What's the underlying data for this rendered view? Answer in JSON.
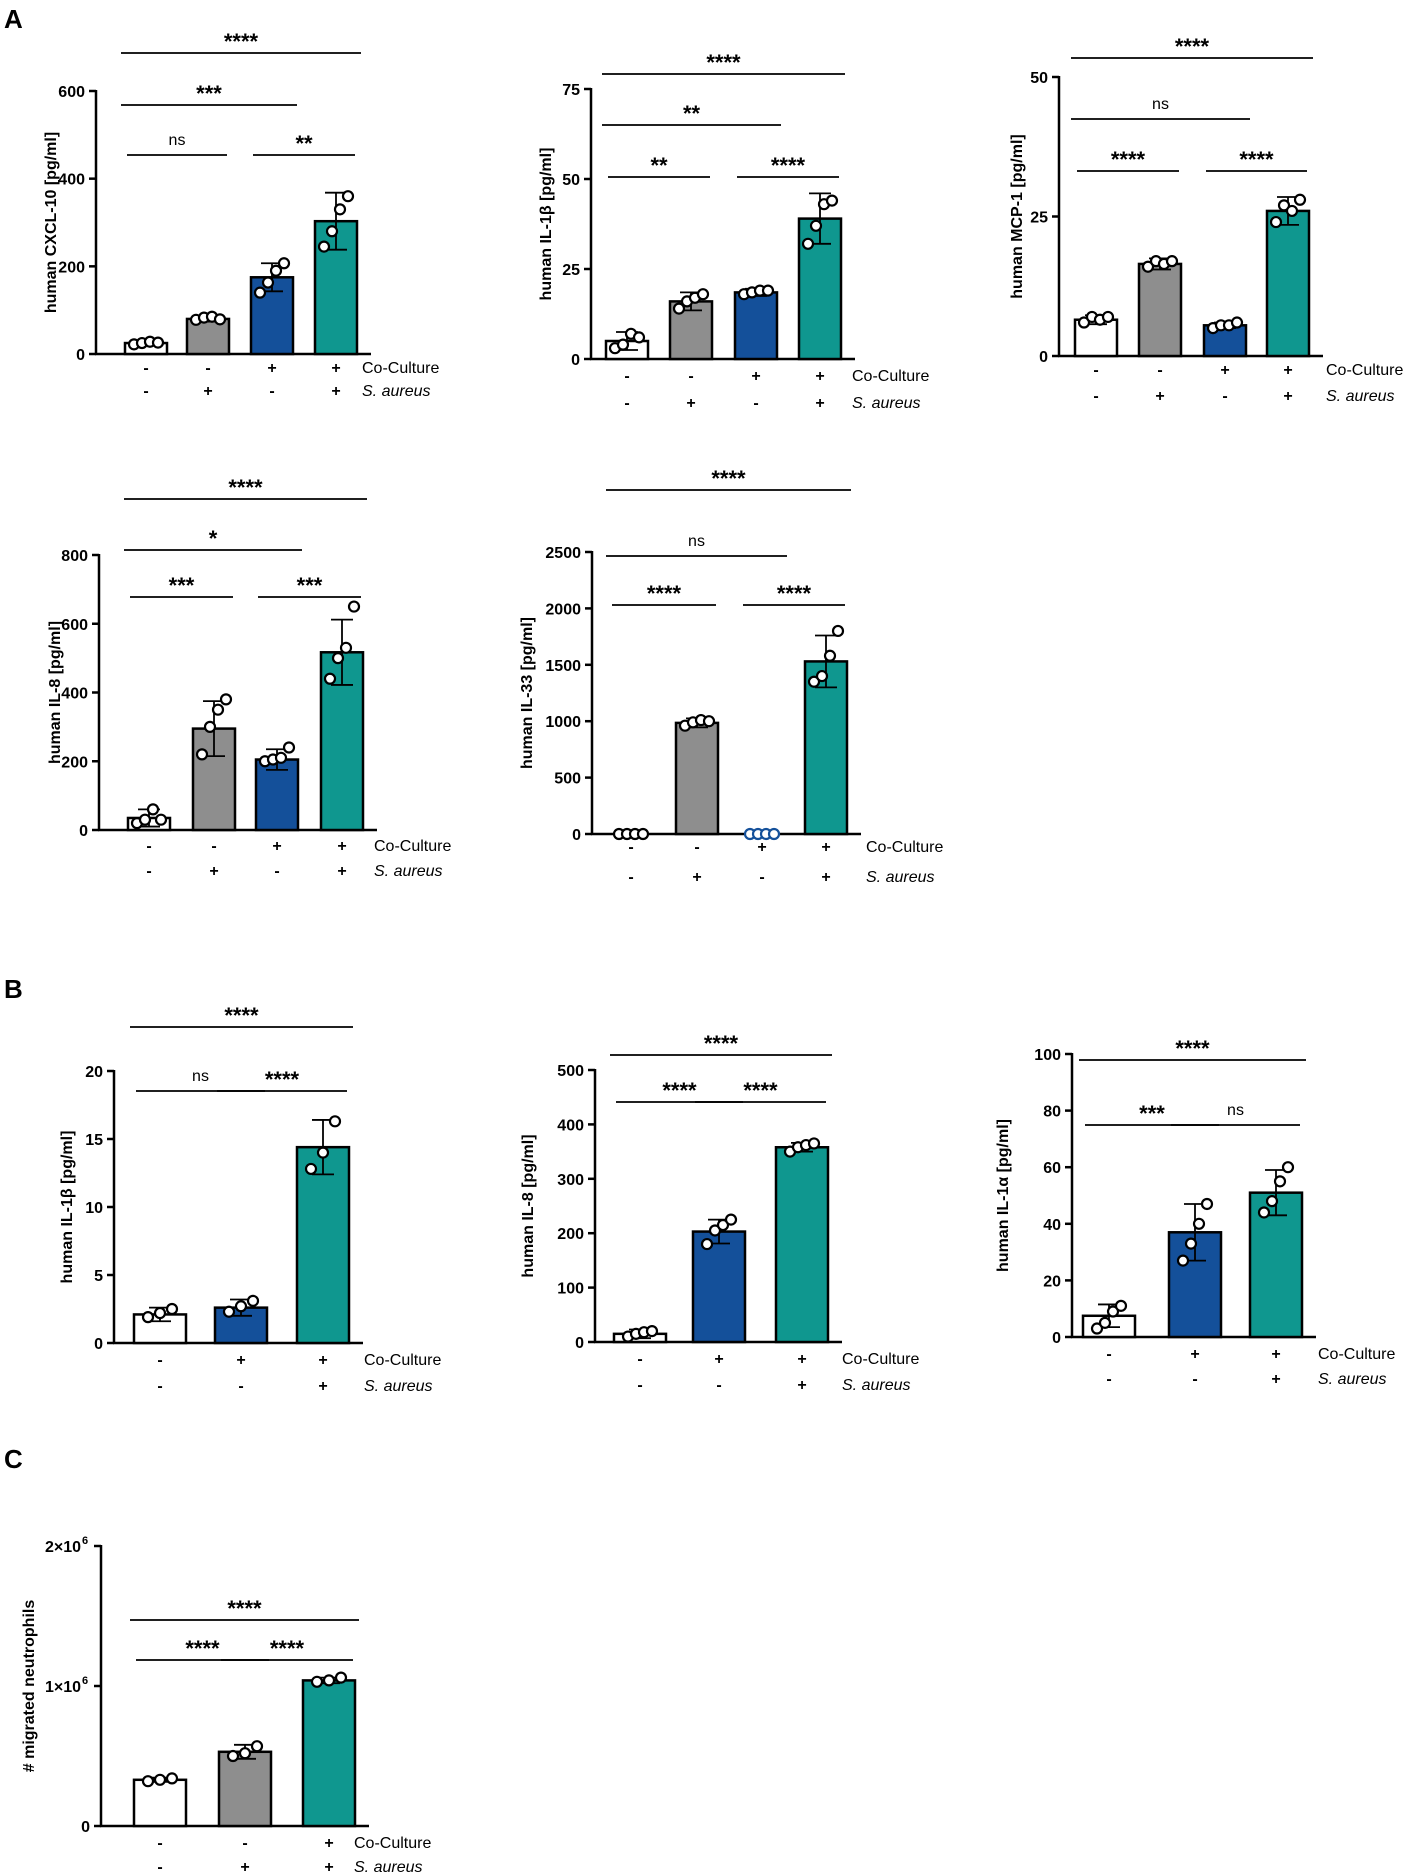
{
  "panels": [
    {
      "label": "A",
      "data_name": "panel-label-a"
    },
    {
      "label": "B",
      "data_name": "panel-label-b"
    },
    {
      "label": "C",
      "data_name": "panel-label-c"
    }
  ],
  "colors": {
    "no_coculture_no_aureus": "#ffffff",
    "no_coculture_aureus": "#8e8e8e",
    "coculture_no_aureus": "#14509a",
    "coculture_aureus": "#0f978f",
    "outline": "#000000"
  },
  "row_labels": {
    "coculture": "Co-Culture",
    "aureus": "S. aureus"
  },
  "chart_data": [
    {
      "id": "a1",
      "panel": "A",
      "type": "bar",
      "ylabel": "human CXCL-10 [pg/ml]",
      "ylim": [
        0,
        600
      ],
      "yticks": [
        0,
        200,
        400,
        600
      ],
      "yticklabels": [
        "0",
        "200",
        "400",
        "600"
      ],
      "categories": [
        "-/-",
        "-/+",
        "+/-",
        "+/+"
      ],
      "coculture": [
        "-",
        "-",
        "+",
        "+"
      ],
      "aureus": [
        "-",
        "+",
        "-",
        "+"
      ],
      "values": [
        25,
        80,
        175,
        303
      ],
      "errors": [
        5,
        6,
        32,
        65
      ],
      "points": [
        [
          22,
          25,
          28,
          26
        ],
        [
          78,
          83,
          85,
          79
        ],
        [
          140,
          163,
          190,
          207
        ],
        [
          245,
          280,
          330,
          360
        ]
      ],
      "colors": [
        "#ffffff",
        "#8e8e8e",
        "#14509a",
        "#0f978f"
      ],
      "comparisons": [
        {
          "from": 0,
          "to": 1,
          "label": "ns"
        },
        {
          "from": 2,
          "to": 3,
          "label": "**"
        },
        {
          "from": 0,
          "to": 2,
          "label": "***"
        },
        {
          "from": 0,
          "to": 3,
          "label": "****"
        }
      ]
    },
    {
      "id": "a2",
      "panel": "A",
      "type": "bar",
      "ylabel": "human IL-1β [pg/ml]",
      "ylim": [
        0,
        75
      ],
      "yticks": [
        0,
        25,
        50,
        75
      ],
      "yticklabels": [
        "0",
        "25",
        "50",
        "75"
      ],
      "categories": [
        "-/-",
        "-/+",
        "+/-",
        "+/+"
      ],
      "coculture": [
        "-",
        "-",
        "+",
        "+"
      ],
      "aureus": [
        "-",
        "+",
        "-",
        "+"
      ],
      "values": [
        5,
        16,
        18.5,
        39
      ],
      "errors": [
        2.5,
        2.5,
        1,
        7
      ],
      "points": [
        [
          3,
          4,
          7,
          6
        ],
        [
          14,
          16,
          17,
          18
        ],
        [
          18,
          18.5,
          19,
          19
        ],
        [
          32,
          37,
          43,
          44
        ]
      ],
      "colors": [
        "#ffffff",
        "#8e8e8e",
        "#14509a",
        "#0f978f"
      ],
      "comparisons": [
        {
          "from": 0,
          "to": 1,
          "label": "**"
        },
        {
          "from": 2,
          "to": 3,
          "label": "****"
        },
        {
          "from": 0,
          "to": 2,
          "label": "**"
        },
        {
          "from": 0,
          "to": 3,
          "label": "****"
        }
      ]
    },
    {
      "id": "a3",
      "panel": "A",
      "type": "bar",
      "ylabel": "human MCP-1 [pg/ml]",
      "ylim": [
        0,
        50
      ],
      "yticks": [
        0,
        25,
        50
      ],
      "yticklabels": [
        "0",
        "25",
        "50"
      ],
      "categories": [
        "-/-",
        "-/+",
        "+/-",
        "+/+"
      ],
      "coculture": [
        "-",
        "-",
        "+",
        "+"
      ],
      "aureus": [
        "-",
        "+",
        "-",
        "+"
      ],
      "values": [
        6.5,
        16.5,
        5.5,
        26
      ],
      "errors": [
        0.8,
        1,
        0.5,
        2.5
      ],
      "points": [
        [
          6,
          7,
          6.5,
          7
        ],
        [
          16,
          17,
          16.5,
          17
        ],
        [
          5,
          5.5,
          5.5,
          6
        ],
        [
          24,
          27,
          26,
          28
        ]
      ],
      "colors": [
        "#ffffff",
        "#8e8e8e",
        "#14509a",
        "#0f978f"
      ],
      "comparisons": [
        {
          "from": 0,
          "to": 1,
          "label": "****"
        },
        {
          "from": 2,
          "to": 3,
          "label": "****"
        },
        {
          "from": 0,
          "to": 2,
          "label": "ns"
        },
        {
          "from": 0,
          "to": 3,
          "label": "****"
        }
      ]
    },
    {
      "id": "a4",
      "panel": "A",
      "type": "bar",
      "ylabel": "human IL-8 [pg/ml]",
      "ylim": [
        0,
        800
      ],
      "yticks": [
        0,
        200,
        400,
        600,
        800
      ],
      "yticklabels": [
        "0",
        "200",
        "400",
        "600",
        "800"
      ],
      "categories": [
        "-/-",
        "-/+",
        "+/-",
        "+/+"
      ],
      "coculture": [
        "-",
        "-",
        "+",
        "+"
      ],
      "aureus": [
        "-",
        "+",
        "-",
        "+"
      ],
      "values": [
        35,
        295,
        205,
        517
      ],
      "errors": [
        25,
        80,
        30,
        95
      ],
      "points": [
        [
          20,
          30,
          60,
          30
        ],
        [
          220,
          300,
          350,
          380
        ],
        [
          200,
          205,
          210,
          240
        ],
        [
          440,
          500,
          530,
          650
        ]
      ],
      "colors": [
        "#ffffff",
        "#8e8e8e",
        "#14509a",
        "#0f978f"
      ],
      "comparisons": [
        {
          "from": 0,
          "to": 1,
          "label": "***"
        },
        {
          "from": 2,
          "to": 3,
          "label": "***"
        },
        {
          "from": 0,
          "to": 2,
          "label": "*"
        },
        {
          "from": 0,
          "to": 3,
          "label": "****"
        }
      ]
    },
    {
      "id": "a5",
      "panel": "A",
      "type": "bar",
      "ylabel": "human IL-33 [pg/ml]",
      "ylim": [
        0,
        2500
      ],
      "yticks": [
        0,
        500,
        1000,
        1500,
        2000,
        2500
      ],
      "yticklabels": [
        "0",
        "500",
        "1000",
        "1500",
        "2000",
        "2500"
      ],
      "categories": [
        "-/-",
        "-/+",
        "+/-",
        "+/+"
      ],
      "coculture": [
        "-",
        "-",
        "+",
        "+"
      ],
      "aureus": [
        "-",
        "+",
        "-",
        "+"
      ],
      "values": [
        0,
        985,
        0,
        1530
      ],
      "errors": [
        0,
        40,
        0,
        230
      ],
      "points": [
        [
          0,
          0,
          0,
          0
        ],
        [
          960,
          990,
          1010,
          1000
        ],
        [
          0,
          0,
          0,
          0
        ],
        [
          1350,
          1400,
          1580,
          1800
        ]
      ],
      "point_stroke": [
        "#000000",
        "#000000",
        "#14509a",
        "#000000"
      ],
      "colors": [
        "#ffffff",
        "#8e8e8e",
        "#14509a",
        "#0f978f"
      ],
      "comparisons": [
        {
          "from": 0,
          "to": 1,
          "label": "****"
        },
        {
          "from": 2,
          "to": 3,
          "label": "****"
        },
        {
          "from": 0,
          "to": 2,
          "label": "ns"
        },
        {
          "from": 0,
          "to": 3,
          "label": "****"
        }
      ]
    },
    {
      "id": "b1",
      "panel": "B",
      "type": "bar",
      "ylabel": "human IL-1β [pg/ml]",
      "ylim": [
        0,
        20
      ],
      "yticks": [
        0,
        5,
        10,
        15,
        20
      ],
      "yticklabels": [
        "0",
        "5",
        "10",
        "15",
        "20"
      ],
      "categories": [
        "-/-",
        "+/-",
        "+/+"
      ],
      "coculture": [
        "-",
        "+",
        "+"
      ],
      "aureus": [
        "-",
        "-",
        "+"
      ],
      "values": [
        2.1,
        2.6,
        14.4
      ],
      "errors": [
        0.5,
        0.6,
        2
      ],
      "points": [
        [
          1.9,
          2.2,
          2.5
        ],
        [
          2.3,
          2.7,
          3.1
        ],
        [
          12.8,
          14,
          16.3
        ]
      ],
      "colors": [
        "#ffffff",
        "#14509a",
        "#0f978f"
      ],
      "comparisons": [
        {
          "from": 0,
          "to": 1,
          "label": "ns"
        },
        {
          "from": 1,
          "to": 2,
          "label": "****"
        },
        {
          "from": 0,
          "to": 2,
          "label": "****"
        }
      ]
    },
    {
      "id": "b2",
      "panel": "B",
      "type": "bar",
      "ylabel": "human IL-8 [pg/ml]",
      "ylim": [
        0,
        500
      ],
      "yticks": [
        0,
        100,
        200,
        300,
        400,
        500
      ],
      "yticklabels": [
        "0",
        "100",
        "200",
        "300",
        "400",
        "500"
      ],
      "categories": [
        "-/-",
        "+/-",
        "+/+"
      ],
      "coculture": [
        "-",
        "+",
        "+"
      ],
      "aureus": [
        "-",
        "-",
        "+"
      ],
      "values": [
        15,
        203,
        358
      ],
      "errors": [
        8,
        22,
        8
      ],
      "points": [
        [
          10,
          15,
          18,
          20
        ],
        [
          180,
          205,
          215,
          225
        ],
        [
          350,
          358,
          362,
          365
        ]
      ],
      "colors": [
        "#ffffff",
        "#14509a",
        "#0f978f"
      ],
      "comparisons": [
        {
          "from": 0,
          "to": 1,
          "label": "****"
        },
        {
          "from": 1,
          "to": 2,
          "label": "****"
        },
        {
          "from": 0,
          "to": 2,
          "label": "****"
        }
      ]
    },
    {
      "id": "b3",
      "panel": "B",
      "type": "bar",
      "ylabel": "human IL-1α [pg/ml]",
      "ylim": [
        0,
        100
      ],
      "yticks": [
        0,
        20,
        40,
        60,
        80,
        100
      ],
      "yticklabels": [
        "0",
        "20",
        "40",
        "60",
        "80",
        "100"
      ],
      "categories": [
        "-/-",
        "+/-",
        "+/+"
      ],
      "coculture": [
        "-",
        "+",
        "+"
      ],
      "aureus": [
        "-",
        "-",
        "+"
      ],
      "values": [
        7.5,
        37,
        51
      ],
      "errors": [
        4,
        10,
        8
      ],
      "points": [
        [
          3,
          5,
          9,
          11
        ],
        [
          27,
          33,
          40,
          47
        ],
        [
          44,
          48,
          55,
          60
        ]
      ],
      "colors": [
        "#ffffff",
        "#14509a",
        "#0f978f"
      ],
      "comparisons": [
        {
          "from": 0,
          "to": 1,
          "label": "***"
        },
        {
          "from": 1,
          "to": 2,
          "label": "ns"
        },
        {
          "from": 0,
          "to": 2,
          "label": "****"
        }
      ]
    },
    {
      "id": "c1",
      "panel": "C",
      "type": "bar",
      "ylabel": "# migrated neutrophils",
      "ylim": [
        0,
        2000000
      ],
      "yticks": [
        0,
        1000000,
        2000000
      ],
      "yticklabels": [
        "0",
        "1×10",
        "2×10"
      ],
      "ytick_exponent": "6",
      "categories": [
        "-/-",
        "-/+",
        "+/+"
      ],
      "coculture": [
        "-",
        "-",
        "+"
      ],
      "aureus": [
        "-",
        "+",
        "+"
      ],
      "values": [
        330000,
        530000,
        1040000
      ],
      "errors": [
        15000,
        50000,
        20000
      ],
      "points": [
        [
          320000,
          330000,
          340000
        ],
        [
          500000,
          520000,
          570000
        ],
        [
          1030000,
          1040000,
          1060000
        ]
      ],
      "colors": [
        "#ffffff",
        "#8e8e8e",
        "#0f978f"
      ],
      "comparisons": [
        {
          "from": 0,
          "to": 1,
          "label": "****"
        },
        {
          "from": 1,
          "to": 2,
          "label": "****"
        },
        {
          "from": 0,
          "to": 2,
          "label": "****"
        }
      ]
    }
  ]
}
